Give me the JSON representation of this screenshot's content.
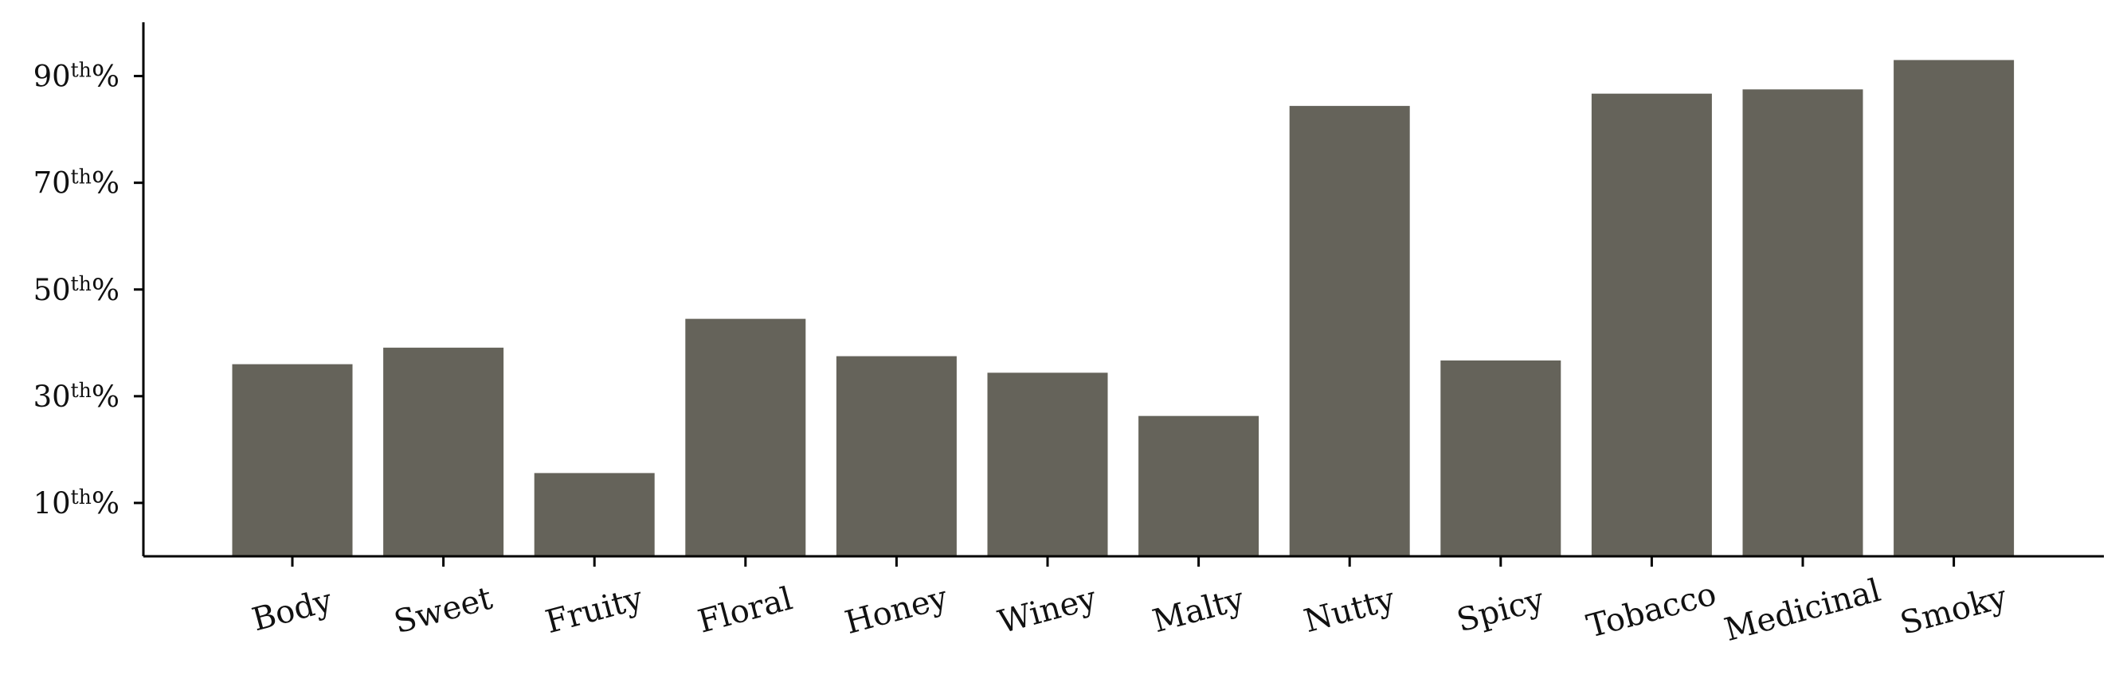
{
  "chart_data": {
    "type": "bar",
    "title": "",
    "xlabel": "",
    "ylabel": "",
    "categories": [
      "Body",
      "Sweet",
      "Fruity",
      "Floral",
      "Honey",
      "Winey",
      "Malty",
      "Nutty",
      "Spicy",
      "Tobacco",
      "Medicinal",
      "Smoky"
    ],
    "values": [
      36.0,
      39.1,
      15.6,
      44.5,
      37.5,
      34.4,
      26.3,
      84.4,
      36.7,
      86.7,
      87.5,
      93.0
    ],
    "yticks": [
      10,
      30,
      50,
      70,
      90
    ],
    "ytick_labels": [
      {
        "num": "10",
        "sup": "th",
        "unit": "%"
      },
      {
        "num": "30",
        "sup": "th",
        "unit": "%"
      },
      {
        "num": "50",
        "sup": "th",
        "unit": "%"
      },
      {
        "num": "70",
        "sup": "th",
        "unit": "%"
      },
      {
        "num": "90",
        "sup": "th",
        "unit": "%"
      }
    ],
    "ylim": [
      0,
      100
    ],
    "bar_color": "#65635a",
    "grid": false,
    "legend": "none"
  }
}
